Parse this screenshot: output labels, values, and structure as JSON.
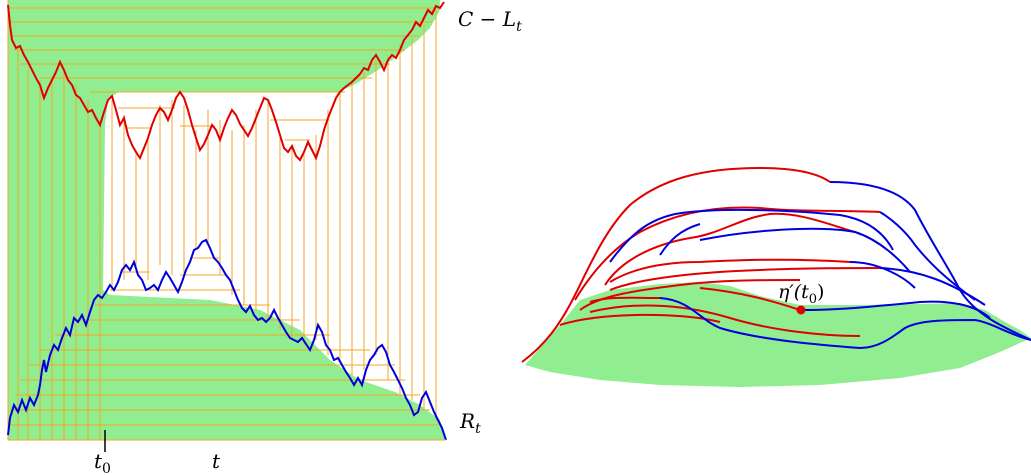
{
  "left_panel": {
    "label_top_right": "C − L",
    "label_top_right_sub": "t",
    "label_bottom_right": "R",
    "label_bottom_right_sub": "t",
    "tick_t0": "t",
    "tick_t0_sub": "0",
    "tick_t": "t"
  },
  "right_panel": {
    "point_label": "η′(t",
    "point_label_sub": "0",
    "point_label_close": ")"
  },
  "colors": {
    "fill": "#90ee90",
    "upper_curve": "#e00000",
    "lower_curve": "#0000dd",
    "grid": "#f5a623"
  }
}
